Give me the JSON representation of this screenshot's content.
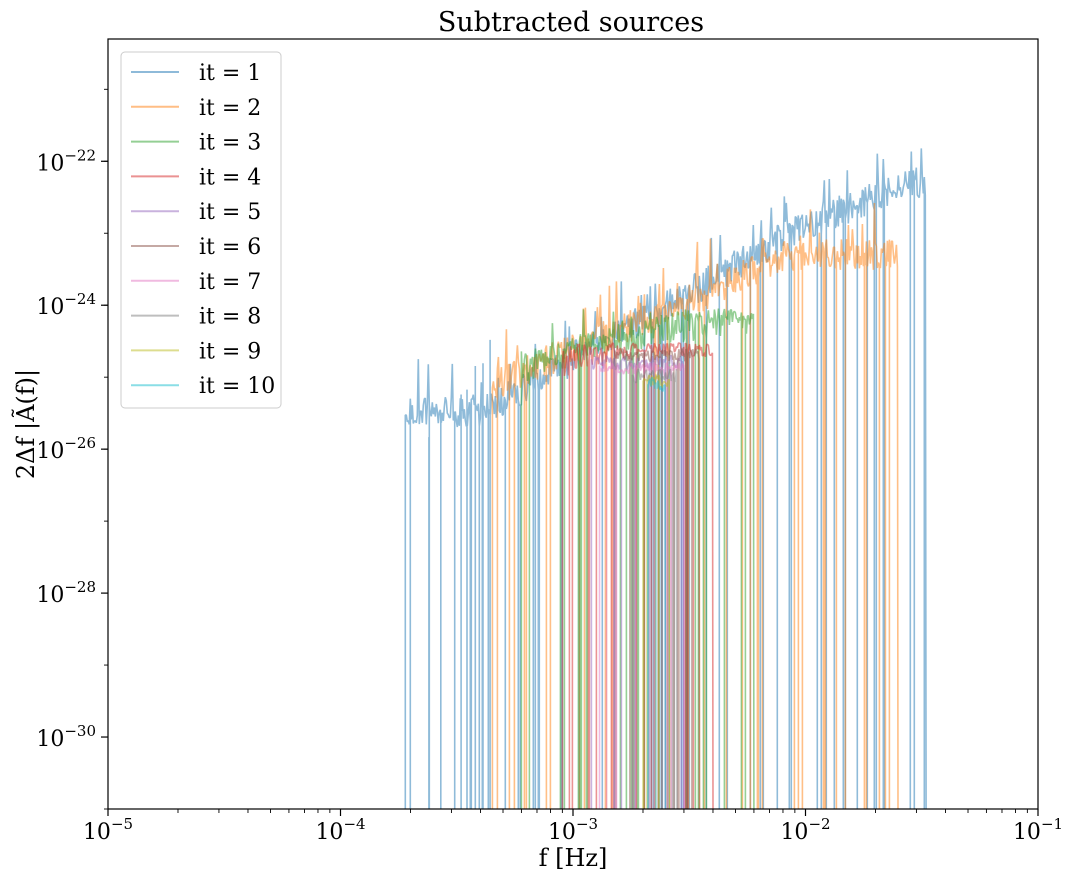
{
  "chart_data": {
    "type": "line",
    "title": "Subtracted sources",
    "xlabel": "f [Hz]",
    "ylabel": "2Δf |Ã(f)|",
    "xscale": "log",
    "yscale": "log",
    "xlim": [
      1e-05,
      0.1
    ],
    "ylim": [
      1e-31,
      5e-21
    ],
    "x_ticks": [
      {
        "base": "10",
        "exp": "−5",
        "value": 1e-05
      },
      {
        "base": "10",
        "exp": "−4",
        "value": 0.0001
      },
      {
        "base": "10",
        "exp": "−3",
        "value": 0.001
      },
      {
        "base": "10",
        "exp": "−2",
        "value": 0.01
      },
      {
        "base": "10",
        "exp": "−1",
        "value": 0.1
      }
    ],
    "y_ticks": [
      {
        "base": "10",
        "exp": "−30",
        "value": 1e-30
      },
      {
        "base": "10",
        "exp": "−28",
        "value": 1e-28
      },
      {
        "base": "10",
        "exp": "−26",
        "value": 1e-26
      },
      {
        "base": "10",
        "exp": "−24",
        "value": 1e-24
      },
      {
        "base": "10",
        "exp": "−22",
        "value": 1e-22
      }
    ],
    "grid": false,
    "legend_position": "top-left",
    "series": [
      {
        "name": "it = 1",
        "color": "#1f77b4",
        "f_range": [
          0.00019,
          0.033
        ],
        "baseline_points": [
          [
            0.0004,
            2e-26
          ],
          [
            0.001,
            1e-25
          ],
          [
            0.003,
            8e-25
          ],
          [
            0.01,
            8e-24
          ],
          [
            0.03,
            3e-23
          ]
        ],
        "peak_max": 1.2e-21
      },
      {
        "name": "it = 2",
        "color": "#ff7f0e",
        "f_range": [
          0.00045,
          0.025
        ],
        "baseline_points": [
          [
            0.0005,
            5e-26
          ],
          [
            0.001,
            1.5e-25
          ],
          [
            0.003,
            6e-25
          ],
          [
            0.008,
            3e-24
          ]
        ],
        "peak_max": 5e-23
      },
      {
        "name": "it = 3",
        "color": "#2ca02c",
        "f_range": [
          0.0006,
          0.006
        ],
        "baseline_points": [
          [
            0.0006,
            8e-26
          ],
          [
            0.0015,
            2e-25
          ],
          [
            0.003,
            3e-25
          ],
          [
            0.005,
            4e-25
          ]
        ],
        "peak_max": 9e-25
      },
      {
        "name": "it = 4",
        "color": "#d62728",
        "f_range": [
          0.0009,
          0.004
        ],
        "baseline_points": [
          [
            0.0009,
            1e-25
          ],
          [
            0.002,
            2e-25
          ],
          [
            0.0035,
            2.5e-25
          ]
        ],
        "peak_max": 3e-25
      },
      {
        "name": "it = 5",
        "color": "#9467bd",
        "f_range": [
          0.0012,
          0.003
        ],
        "baseline_points": [
          [
            0.0012,
            1e-25
          ],
          [
            0.0025,
            1.5e-25
          ]
        ],
        "peak_max": 2e-25
      },
      {
        "name": "it = 6",
        "color": "#8c564b",
        "f_range": [
          0.0015,
          0.0035
        ],
        "baseline_points": [
          [
            0.0015,
            1.5e-25
          ],
          [
            0.003,
            2e-25
          ]
        ],
        "peak_max": 2.5e-25
      },
      {
        "name": "it = 7",
        "color": "#e377c2",
        "f_range": [
          0.0013,
          0.003
        ],
        "baseline_points": [
          [
            0.0013,
            1e-25
          ],
          [
            0.0028,
            1.3e-25
          ]
        ],
        "peak_max": 1.6e-25
      },
      {
        "name": "it = 8",
        "color": "#7f7f7f",
        "f_range": [
          0.0018,
          0.0028
        ],
        "baseline_points": [
          [
            0.0018,
            1e-25
          ],
          [
            0.0028,
            1.2e-25
          ]
        ],
        "peak_max": 1.3e-25
      },
      {
        "name": "it = 9",
        "color": "#bcbd22",
        "f_range": [
          0.002,
          0.0026
        ],
        "baseline_points": [
          [
            0.002,
            9e-26
          ],
          [
            0.0026,
            1e-25
          ]
        ],
        "peak_max": 1.1e-25
      },
      {
        "name": "it = 10",
        "color": "#17becf",
        "f_range": [
          0.0021,
          0.0025
        ],
        "baseline_points": [
          [
            0.0021,
            8e-26
          ],
          [
            0.0025,
            9e-26
          ]
        ],
        "peak_max": 1e-25
      }
    ]
  }
}
